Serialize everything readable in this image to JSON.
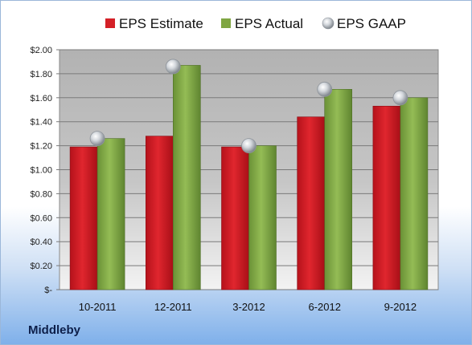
{
  "company": "Middleby",
  "legend": [
    {
      "label": "EPS Estimate",
      "marker": "square",
      "color": "#d42027"
    },
    {
      "label": "EPS Actual",
      "marker": "square",
      "color": "#7fa642"
    },
    {
      "label": "EPS GAAP",
      "marker": "sphere",
      "color": "#b8bec6"
    }
  ],
  "chart_data": {
    "type": "bar",
    "categories": [
      "10-2011",
      "12-2011",
      "3-2012",
      "6-2012",
      "9-2012"
    ],
    "series": [
      {
        "name": "EPS Estimate",
        "type": "bar",
        "color": "#d42027",
        "values": [
          1.19,
          1.28,
          1.19,
          1.44,
          1.53
        ]
      },
      {
        "name": "EPS Actual",
        "type": "bar",
        "color": "#7fa642",
        "values": [
          1.26,
          1.87,
          1.2,
          1.67,
          1.6
        ]
      },
      {
        "name": "EPS GAAP",
        "type": "scatter",
        "color": "#b8bec6",
        "values": [
          1.26,
          1.86,
          1.2,
          1.67,
          1.6
        ]
      }
    ],
    "ylim": [
      0,
      2.0
    ],
    "yticks": [
      "$-",
      "$0.20",
      "$0.40",
      "$0.60",
      "$0.80",
      "$1.00",
      "$1.20",
      "$1.40",
      "$1.60",
      "$1.80",
      "$2.00"
    ],
    "grid": true,
    "legend_position": "top"
  }
}
